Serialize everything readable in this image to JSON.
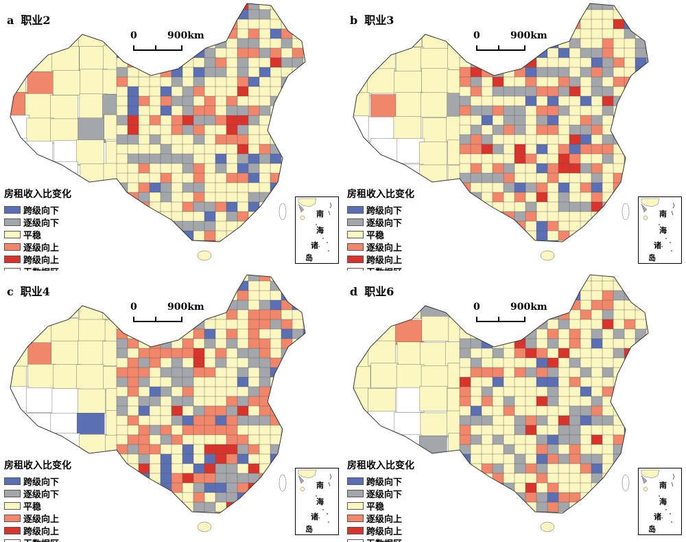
{
  "legend": {
    "title": "房租收入比变化",
    "items": [
      {
        "label": "跨级向下",
        "color": "#5b6fb4"
      },
      {
        "label": "逐级向下",
        "color": "#a3a7ab"
      },
      {
        "label": "平稳",
        "color": "#fbf7c0"
      },
      {
        "label": "逐级向上",
        "color": "#f2866a"
      },
      {
        "label": "跨级向上",
        "color": "#d9342b"
      },
      {
        "label": "无数据区",
        "color": "#ffffff"
      }
    ]
  },
  "scale": {
    "zero": "0",
    "distance": "900km"
  },
  "inset": {
    "chars": [
      "南",
      "海",
      "诸",
      "岛"
    ]
  },
  "panels": [
    {
      "letter": "a",
      "title": "职业2"
    },
    {
      "letter": "b",
      "title": "职业3"
    },
    {
      "letter": "c",
      "title": "职业4"
    },
    {
      "letter": "d",
      "title": "职业6"
    }
  ]
}
